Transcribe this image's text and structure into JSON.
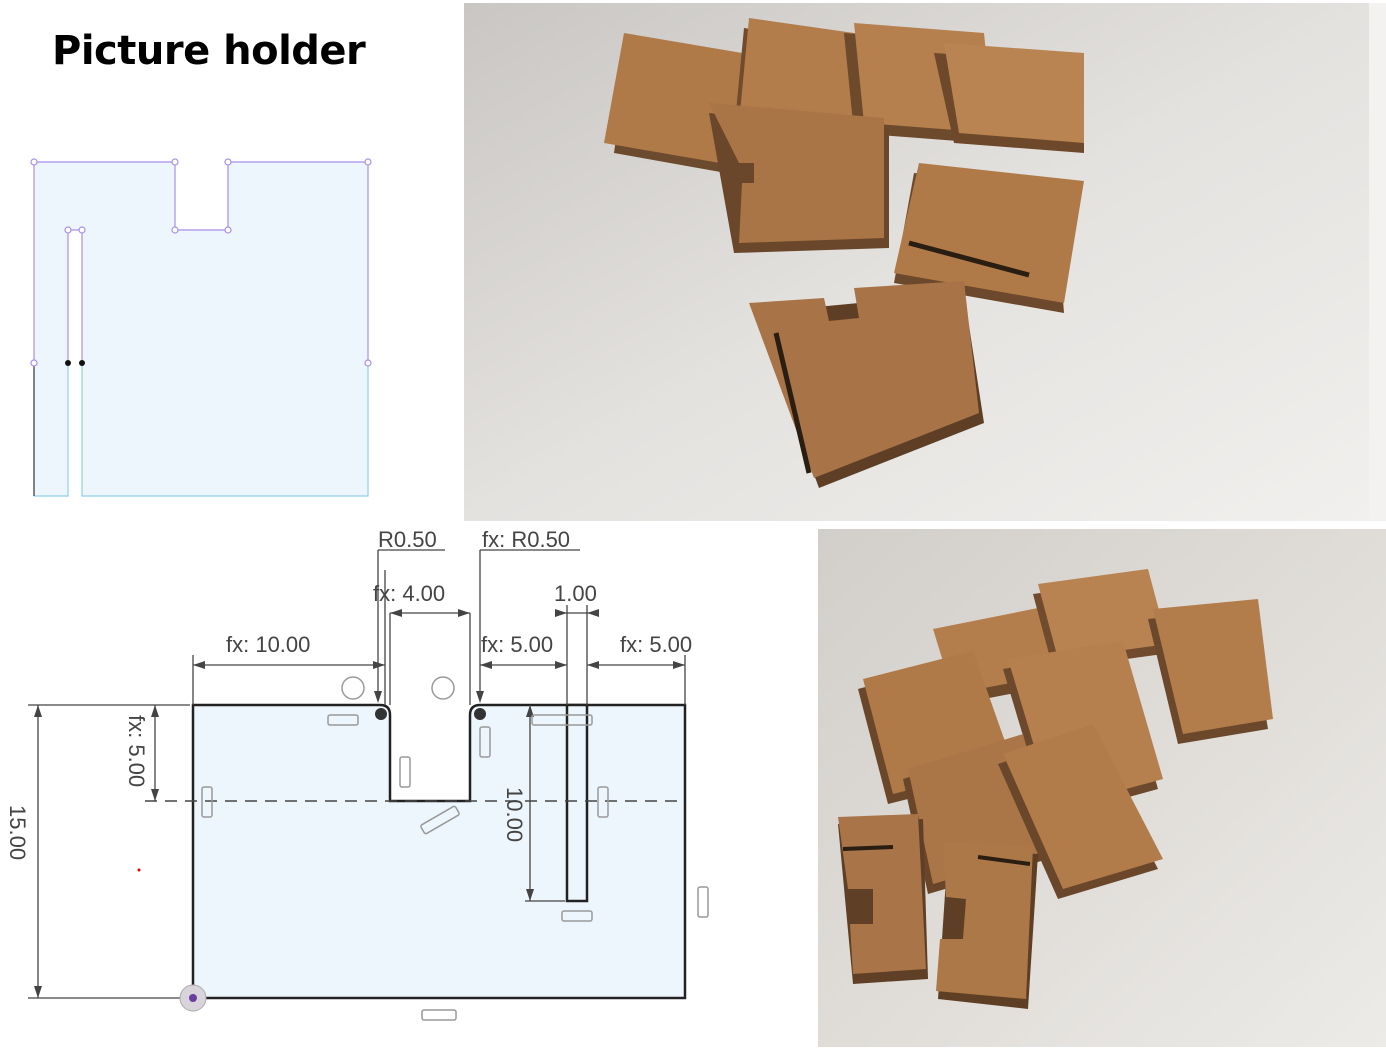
{
  "title": "Picture holder",
  "colors": {
    "sketch_fill": "#eef6fd",
    "sketch_outline_purple": "#a88ee8",
    "sketch_outline_cyan": "#8fd0e6",
    "cardboard": "#b07a48",
    "cardboard_dark": "#7a5030",
    "photo_background": "#d6d3d0"
  },
  "dimensions": {
    "radius_left": "R0.50",
    "radius_right": "fx: R0.50",
    "slot_width": "fx: 4.00",
    "slit_width": "1.00",
    "left_offset": "fx: 10.00",
    "middle_offset": "fx: 5.00",
    "right_offset": "fx: 5.00",
    "slot_depth": "fx: 5.00",
    "total_height": "15.00",
    "slit_length": "10.00"
  },
  "photos": {
    "top": "cardboard-pieces-photo",
    "bottom": "cardboard-pieces-photo"
  }
}
